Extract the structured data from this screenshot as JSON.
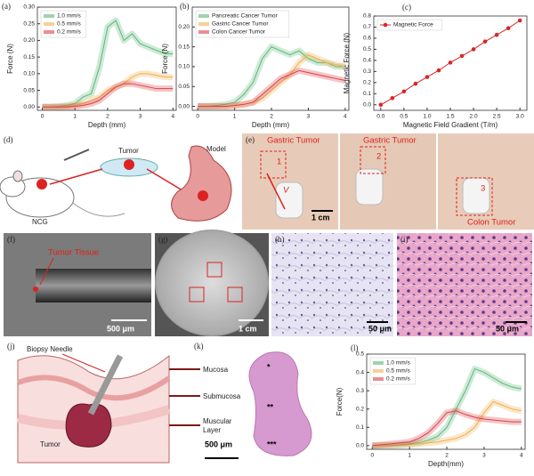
{
  "chart_data": [
    {
      "type": "line",
      "panel_label": "(a)",
      "x_label": "Depth (mm)",
      "y_label": "Force (N)",
      "x": [
        0,
        0.25,
        0.5,
        0.75,
        1,
        1.25,
        1.5,
        1.75,
        2,
        2.25,
        2.5,
        2.75,
        3,
        3.25,
        3.5,
        3.75,
        4
      ],
      "xlim": [
        -0.15,
        4.1
      ],
      "xticks": [
        0,
        1,
        2,
        3,
        4
      ],
      "ylim": [
        -0.01,
        0.3
      ],
      "yticks": [
        {
          "value": 0,
          "label": "0.00"
        },
        0.05,
        {
          "value": 0.1,
          "label": "0.10"
        },
        0.15,
        {
          "value": 0.2,
          "label": "0.20"
        },
        0.25,
        {
          "value": 0.3,
          "label": "0.30"
        }
      ],
      "legend": "upper left",
      "series": [
        {
          "name": "1.0 mm/s",
          "color": "#5cb87a",
          "values": [
            0,
            0,
            0.002,
            0.005,
            0.01,
            0.03,
            0.04,
            0.12,
            0.24,
            0.26,
            0.2,
            0.22,
            0.19,
            0.18,
            0.17,
            0.16,
            0.16
          ]
        },
        {
          "name": "0.5 mm/s",
          "color": "#f0b050",
          "values": [
            0,
            0,
            0,
            0.002,
            0.005,
            0.01,
            0.02,
            0.03,
            0.05,
            0.06,
            0.07,
            0.09,
            0.1,
            0.1,
            0.095,
            0.09,
            0.09
          ]
        },
        {
          "name": "0.2 mm/s",
          "color": "#d9424a",
          "values": [
            0,
            0,
            0,
            0,
            0.002,
            0.005,
            0.01,
            0.02,
            0.04,
            0.06,
            0.07,
            0.07,
            0.065,
            0.06,
            0.055,
            0.055,
            0.055
          ]
        }
      ]
    },
    {
      "type": "line",
      "panel_label": "(b)",
      "x_label": "Depth (mm)",
      "y_label": "Force (N)",
      "x": [
        0,
        0.25,
        0.5,
        0.75,
        1,
        1.25,
        1.5,
        1.75,
        2,
        2.25,
        2.5,
        2.75,
        3,
        3.25,
        3.5,
        3.75,
        4
      ],
      "xlim": [
        -0.15,
        4.1
      ],
      "xticks": [
        0,
        1,
        2,
        3,
        4
      ],
      "ylim": [
        -0.01,
        0.25
      ],
      "yticks": [
        {
          "value": 0,
          "label": "0.00"
        },
        0.05,
        {
          "value": 0.1,
          "label": "0.10"
        },
        0.15,
        {
          "value": 0.2,
          "label": "0.20"
        }
      ],
      "legend": "upper left",
      "series": [
        {
          "name": "Pancreatic Cancer Tumor",
          "color": "#5cb87a",
          "values": [
            0,
            0,
            0.002,
            0.005,
            0.01,
            0.03,
            0.06,
            0.12,
            0.15,
            0.14,
            0.13,
            0.14,
            0.12,
            0.11,
            0.11,
            0.1,
            0.1
          ]
        },
        {
          "name": "Gastric Cancer Tumor",
          "color": "#f0b050",
          "values": [
            0,
            0,
            0,
            0,
            0.002,
            0.005,
            0.01,
            0.02,
            0.04,
            0.06,
            0.08,
            0.11,
            0.13,
            0.12,
            0.11,
            0.105,
            0.1
          ]
        },
        {
          "name": "Colon Cancer Tumor",
          "color": "#d9424a",
          "values": [
            0,
            0,
            0,
            0,
            0.002,
            0.005,
            0.01,
            0.03,
            0.05,
            0.07,
            0.08,
            0.09,
            0.085,
            0.08,
            0.075,
            0.07,
            0.065
          ]
        }
      ]
    },
    {
      "type": "line",
      "panel_label": "(c)",
      "x_label": "Magnetic Field Gradient (T/m)",
      "y_label": "Magnetic Force (N)",
      "marker": "circle",
      "x": [
        0,
        0.25,
        0.5,
        0.75,
        1,
        1.25,
        1.5,
        1.75,
        2,
        2.25,
        2.5,
        2.75,
        3
      ],
      "xlim": [
        -0.15,
        3.15
      ],
      "xticks": [
        {
          "value": 0,
          "label": "0.0"
        },
        0.5,
        {
          "value": 1,
          "label": "1.0"
        },
        1.5,
        {
          "value": 2,
          "label": "2.0"
        },
        2.5,
        {
          "value": 3,
          "label": "3.0"
        }
      ],
      "ylim": [
        -0.05,
        0.8
      ],
      "yticks": [
        {
          "value": 0,
          "label": "0.0"
        },
        0.1,
        0.2,
        0.3,
        0.4,
        0.5,
        0.6,
        0.7,
        0.8
      ],
      "legend": "upper left",
      "series": [
        {
          "name": "Magnetic Force",
          "color": "#d62728",
          "values": [
            0,
            0.06,
            0.12,
            0.19,
            0.25,
            0.31,
            0.38,
            0.44,
            0.5,
            0.57,
            0.63,
            0.69,
            0.76
          ]
        }
      ]
    },
    {
      "type": "line",
      "panel_label": "(l)",
      "x_label": "Depth(mm)",
      "y_label": "Force(N)",
      "x": [
        0,
        0.25,
        0.5,
        0.75,
        1,
        1.25,
        1.5,
        1.75,
        2,
        2.25,
        2.5,
        2.75,
        3,
        3.25,
        3.5,
        3.75,
        4
      ],
      "xlim": [
        -0.15,
        4.1
      ],
      "xticks": [
        0,
        1,
        2,
        3,
        4
      ],
      "ylim": [
        -0.02,
        0.5
      ],
      "yticks": [
        {
          "value": 0,
          "label": "0.0"
        },
        0.1,
        0.2,
        0.3,
        0.4,
        0.5
      ],
      "legend": "upper left",
      "series": [
        {
          "name": "1.0 mm/s",
          "color": "#5cb87a",
          "values": [
            0,
            0,
            0.002,
            0.005,
            0.01,
            0.015,
            0.03,
            0.05,
            0.1,
            0.2,
            0.3,
            0.42,
            0.4,
            0.37,
            0.34,
            0.32,
            0.31
          ]
        },
        {
          "name": "0.5 mm/s",
          "color": "#f0b050",
          "values": [
            0,
            0,
            0,
            0.002,
            0.005,
            0.01,
            0.015,
            0.02,
            0.03,
            0.04,
            0.06,
            0.1,
            0.18,
            0.24,
            0.22,
            0.2,
            0.19
          ]
        },
        {
          "name": "0.2 mm/s",
          "color": "#d9424a",
          "values": [
            0,
            0.005,
            0.01,
            0.015,
            0.02,
            0.04,
            0.07,
            0.12,
            0.18,
            0.19,
            0.17,
            0.155,
            0.145,
            0.14,
            0.135,
            0.13,
            0.13
          ]
        }
      ]
    }
  ],
  "figure": {
    "d": {
      "label": "(d)",
      "tumor": "Tumor",
      "model": "Model",
      "mouse": "NCG"
    },
    "e": {
      "label": "(e)",
      "gastric_1": "Gastric Tumor",
      "gastric_2": "Gastric Tumor",
      "colon": "Colon Tumor",
      "step_1": "1",
      "step_2": "2",
      "step_3": "3",
      "velocity": "V",
      "scale": "1 cm"
    },
    "f": {
      "label": "(f)",
      "tissue": "Tumor Tissue",
      "scale": "500 μm"
    },
    "g": {
      "label": "(g)",
      "scale": "1 cm"
    },
    "h": {
      "label": "(h)",
      "scale": "50 μm"
    },
    "i": {
      "label": "(i)",
      "scale": "50 μm"
    },
    "j": {
      "label": "(j)",
      "needle": "Biopsy Needle",
      "tumor": "Tumor"
    },
    "k": {
      "label": "(k)",
      "mucosa": "Mucosa",
      "submucosa": "Submucosa",
      "muscular": [
        "Muscular",
        "Layer"
      ],
      "marks": [
        "*",
        "**",
        "***"
      ],
      "scale": "500 μm"
    }
  }
}
